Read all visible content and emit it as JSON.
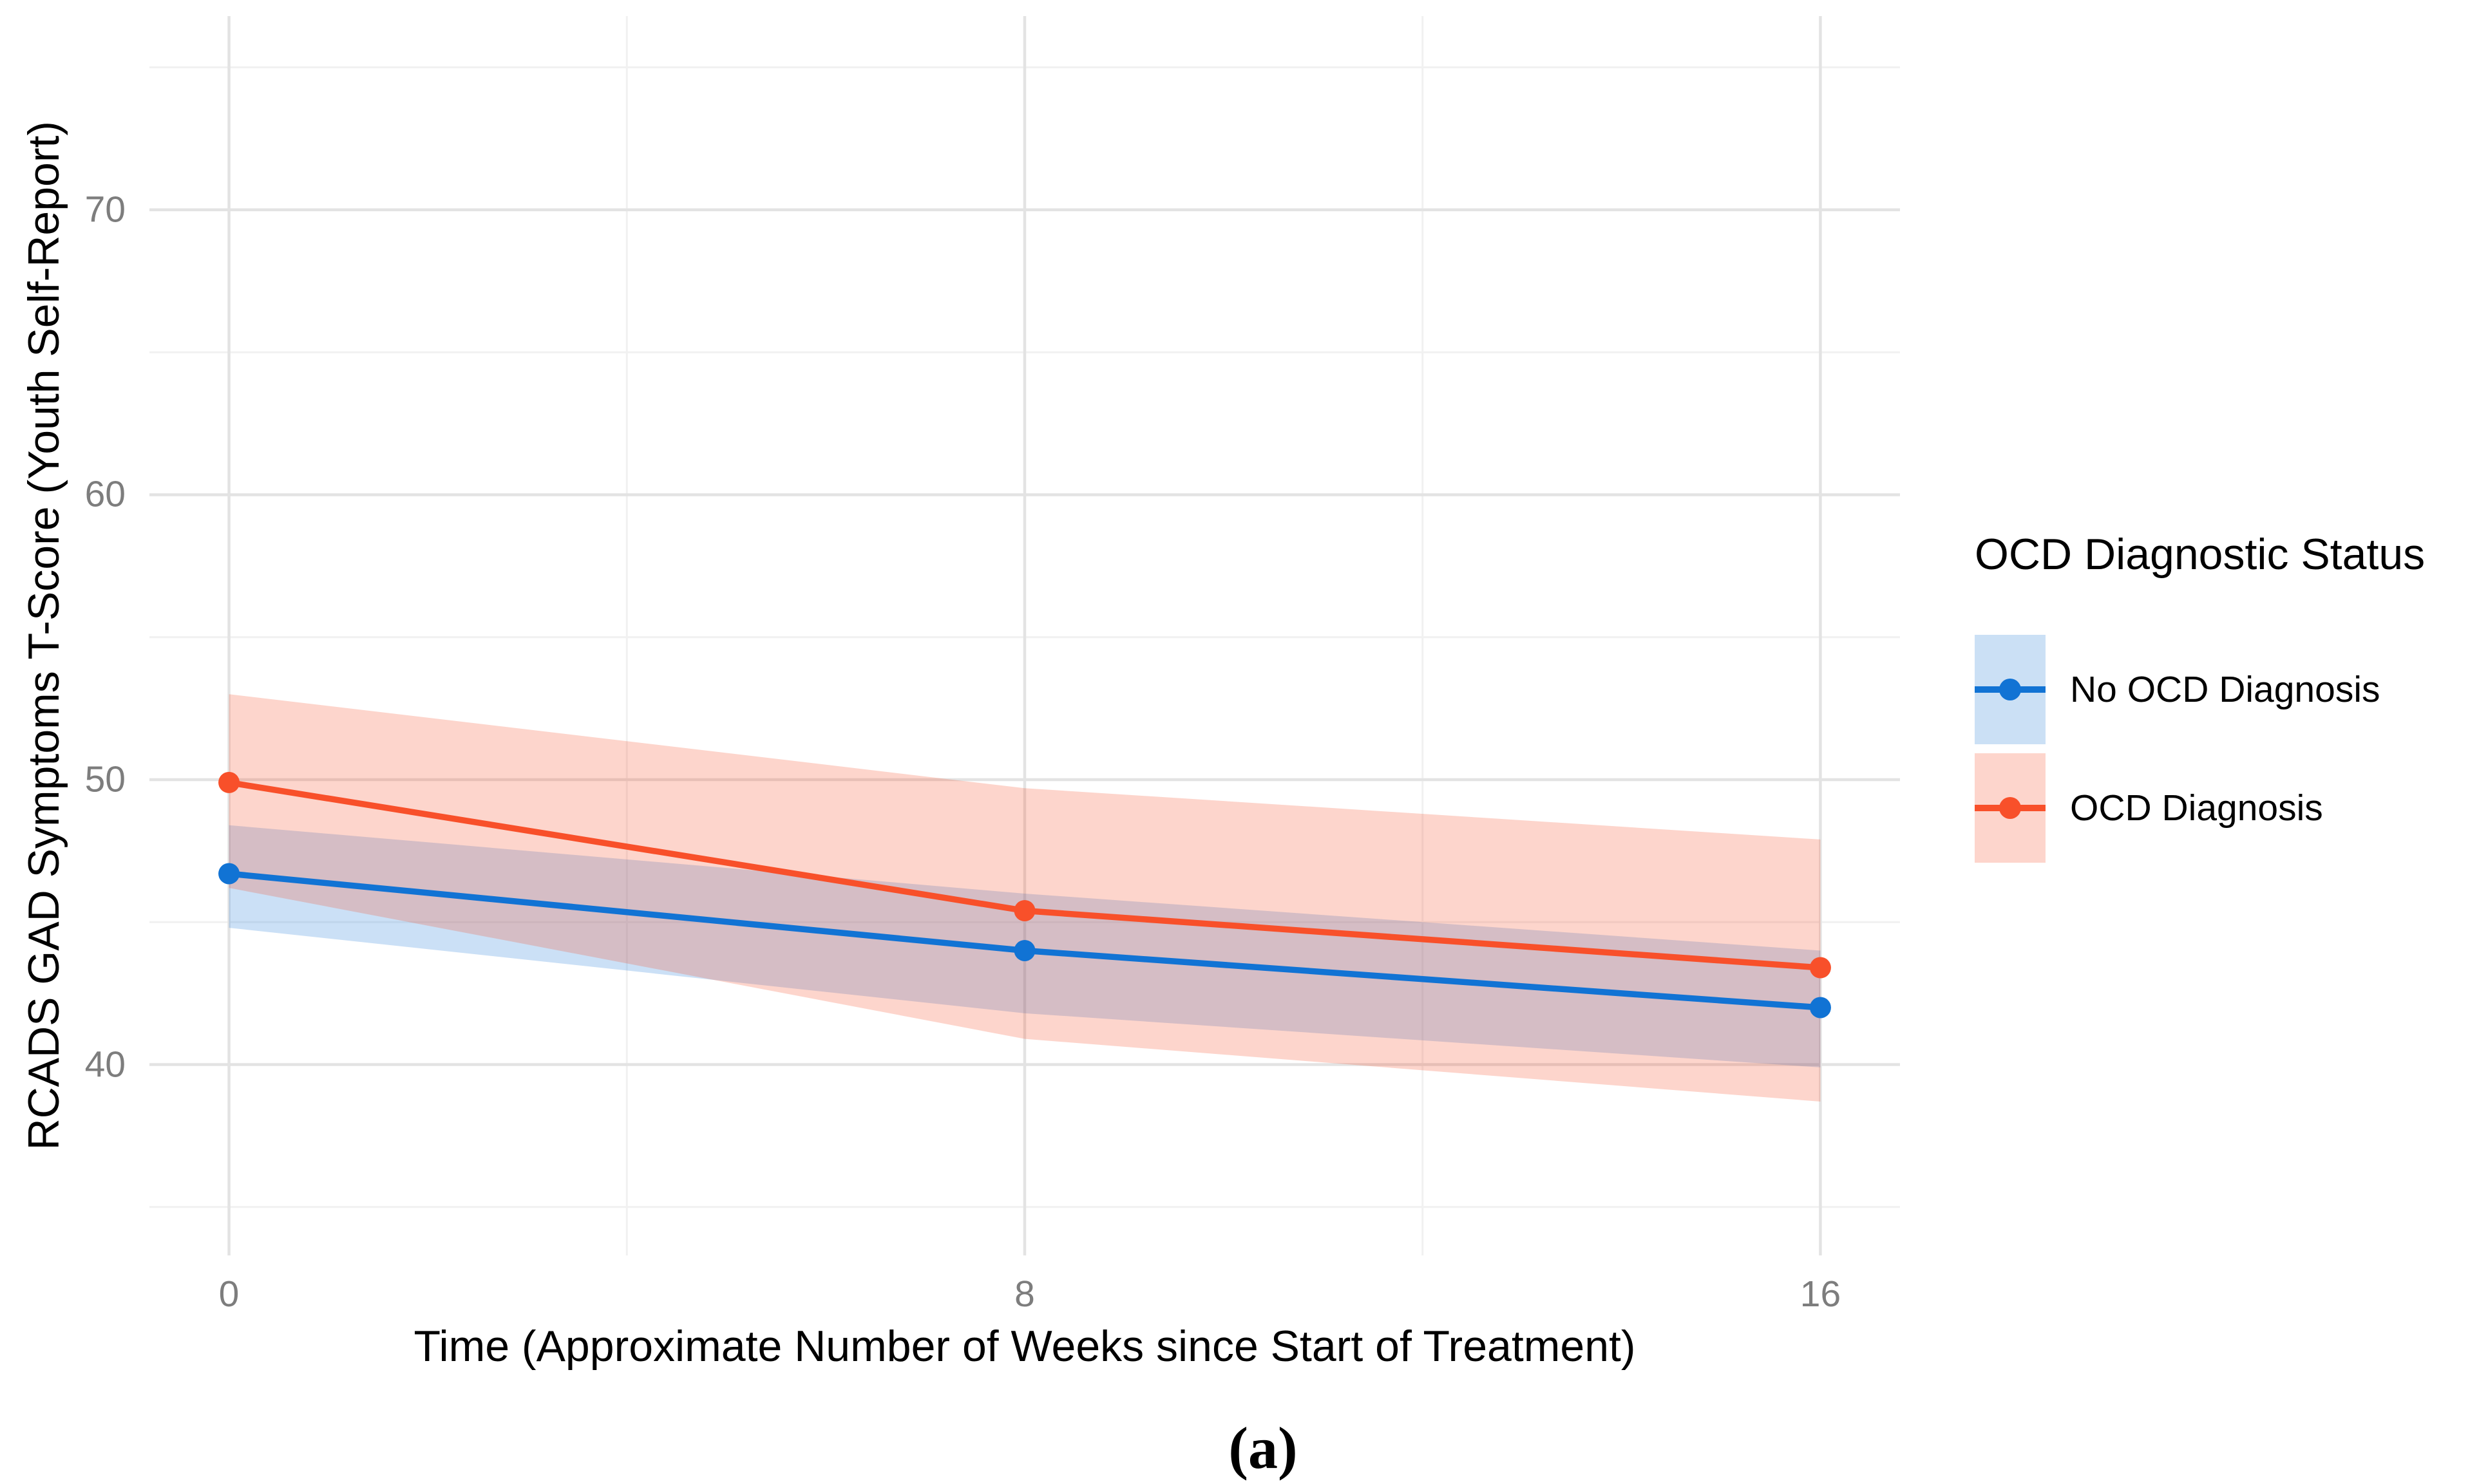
{
  "figure": {
    "caption": "(a)"
  },
  "colors": {
    "background": "#ffffff",
    "axis_text": "#7d7d7d",
    "title_text": "#000000",
    "grid_major": "#e3e3e3",
    "grid_minor": "#f1f1f1"
  },
  "chart_data": {
    "type": "line",
    "title": "",
    "xlabel": "Time (Approximate Number of Weeks since Start of Treatment)",
    "ylabel": "RCADS GAD Symptoms T-Score (Youth Self-Report)",
    "x": [
      0,
      8,
      16
    ],
    "x_tick_labels": [
      "0",
      "8",
      "16"
    ],
    "x_minor_gridlines": [
      4,
      12
    ],
    "y_ticks": [
      40,
      50,
      60,
      70
    ],
    "y_minor_gridlines": [
      35,
      45,
      55,
      65,
      75
    ],
    "xlim": [
      -0.8,
      16.8
    ],
    "ylim": [
      33.3,
      76.8
    ],
    "grid": "on",
    "legend_title": "OCD Diagnostic Status",
    "legend_position": "right",
    "series": [
      {
        "name": "No OCD Diagnosis",
        "slug": "no-ocd-diagnosis",
        "color": "#1173d4",
        "key_fill": "#cbe0f5",
        "band_opacity": 0.22,
        "values": [
          46.7,
          44.0,
          42.0
        ],
        "ci_upper": [
          48.4,
          46.0,
          44.0
        ],
        "ci_lower": [
          44.8,
          41.8,
          39.9
        ]
      },
      {
        "name": "OCD Diagnosis",
        "slug": "ocd-diagnosis",
        "color": "#f8502a",
        "key_fill": "#fdd5cc",
        "band_opacity": 0.24,
        "values": [
          49.9,
          45.4,
          43.4
        ],
        "ci_upper": [
          53.0,
          49.7,
          47.9
        ],
        "ci_lower": [
          46.2,
          40.9,
          38.7
        ]
      }
    ]
  }
}
